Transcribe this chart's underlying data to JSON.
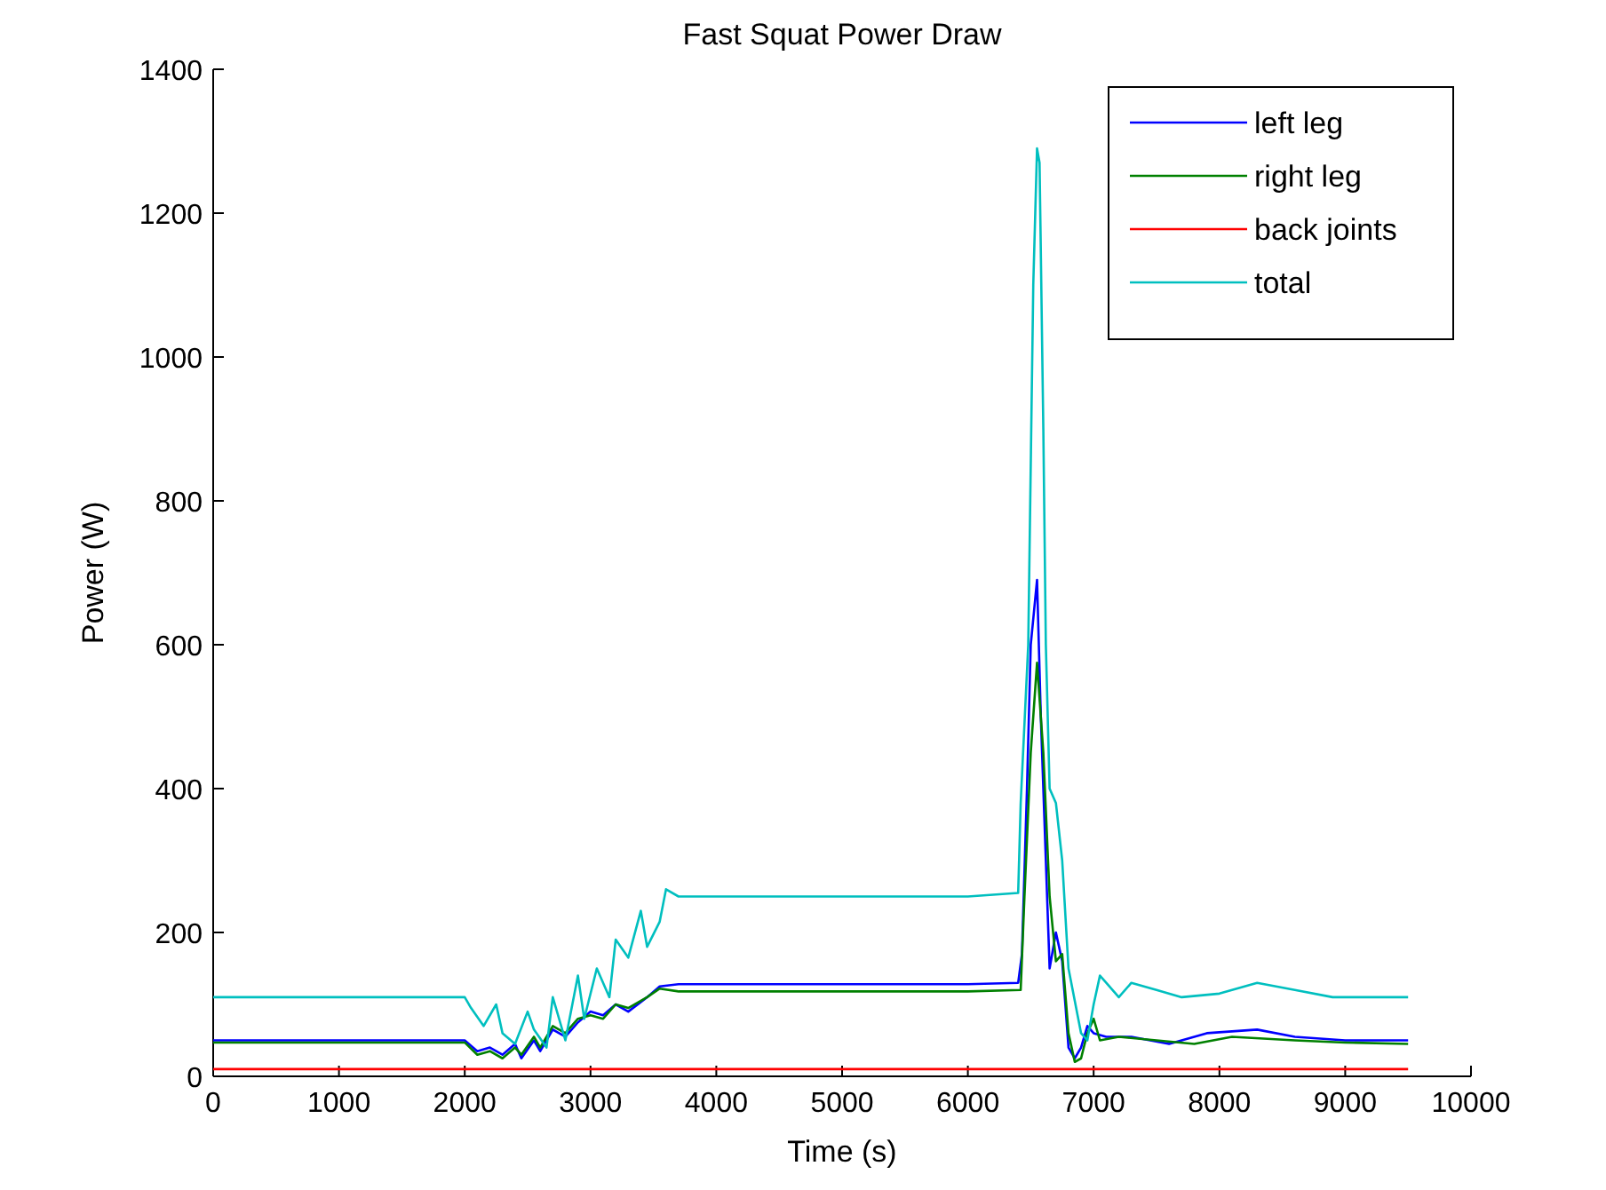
{
  "chart_data": {
    "type": "line",
    "title": "Fast Squat Power Draw",
    "xlabel": "Time (s)",
    "ylabel": "Power (W)",
    "xlim": [
      0,
      10000
    ],
    "xticks": [
      0,
      1000,
      2000,
      3000,
      4000,
      5000,
      6000,
      7000,
      8000,
      9000,
      10000
    ],
    "ylim": [
      0,
      1400
    ],
    "yticks": [
      0,
      200,
      400,
      600,
      800,
      1000,
      1200,
      1400
    ],
    "legend": "top right",
    "grid": false,
    "marker": "none",
    "line_style": "solid",
    "series": [
      {
        "name": "left leg",
        "color": "#0000ff",
        "x": [
          0,
          2000,
          2100,
          2200,
          2300,
          2400,
          2450,
          2550,
          2600,
          2700,
          2800,
          2900,
          3000,
          3100,
          3200,
          3300,
          3450,
          3550,
          3700,
          4000,
          6000,
          6400,
          6430,
          6470,
          6500,
          6550,
          6580,
          6620,
          6650,
          6700,
          6750,
          6800,
          6850,
          6900,
          6950,
          7000,
          7100,
          7300,
          7600,
          7900,
          8300,
          8600,
          9000,
          9500
        ],
        "values": [
          50,
          50,
          35,
          40,
          30,
          45,
          25,
          50,
          35,
          65,
          55,
          75,
          90,
          85,
          100,
          90,
          110,
          125,
          128,
          128,
          128,
          130,
          170,
          400,
          600,
          690,
          500,
          300,
          150,
          200,
          160,
          40,
          25,
          40,
          70,
          60,
          55,
          55,
          45,
          60,
          65,
          55,
          50,
          50
        ]
      },
      {
        "name": "right leg",
        "color": "#008000",
        "x": [
          0,
          2000,
          2100,
          2200,
          2300,
          2400,
          2450,
          2550,
          2600,
          2700,
          2800,
          2900,
          3000,
          3100,
          3200,
          3300,
          3450,
          3550,
          3700,
          4000,
          6000,
          6420,
          6450,
          6500,
          6550,
          6600,
          6650,
          6700,
          6750,
          6800,
          6850,
          6900,
          6950,
          7000,
          7050,
          7200,
          7500,
          7800,
          8100,
          8600,
          9000,
          9500
        ],
        "values": [
          47,
          47,
          30,
          35,
          25,
          40,
          30,
          55,
          40,
          70,
          60,
          80,
          85,
          80,
          100,
          95,
          110,
          122,
          118,
          118,
          118,
          120,
          250,
          450,
          575,
          450,
          250,
          160,
          170,
          60,
          20,
          25,
          60,
          80,
          50,
          55,
          50,
          45,
          55,
          50,
          47,
          45
        ]
      },
      {
        "name": "back joints",
        "color": "#ff0000",
        "x": [
          0,
          9500
        ],
        "values": [
          10,
          10
        ]
      },
      {
        "name": "total",
        "color": "#00bfbf",
        "x": [
          0,
          2000,
          2050,
          2150,
          2250,
          2300,
          2400,
          2500,
          2550,
          2650,
          2700,
          2800,
          2900,
          2950,
          3050,
          3150,
          3200,
          3300,
          3400,
          3450,
          3550,
          3600,
          3700,
          4000,
          5000,
          6000,
          6400,
          6420,
          6480,
          6520,
          6550,
          6570,
          6600,
          6620,
          6650,
          6700,
          6750,
          6800,
          6900,
          6950,
          7000,
          7050,
          7100,
          7200,
          7300,
          7500,
          7700,
          8000,
          8300,
          8600,
          8900,
          9500
        ],
        "values": [
          110,
          110,
          95,
          70,
          100,
          60,
          45,
          90,
          65,
          40,
          110,
          50,
          140,
          80,
          150,
          110,
          190,
          165,
          230,
          180,
          215,
          260,
          250,
          250,
          250,
          250,
          255,
          380,
          600,
          1100,
          1290,
          1270,
          900,
          600,
          400,
          380,
          300,
          150,
          60,
          50,
          100,
          140,
          130,
          110,
          130,
          120,
          110,
          115,
          130,
          120,
          110,
          110
        ]
      }
    ]
  }
}
